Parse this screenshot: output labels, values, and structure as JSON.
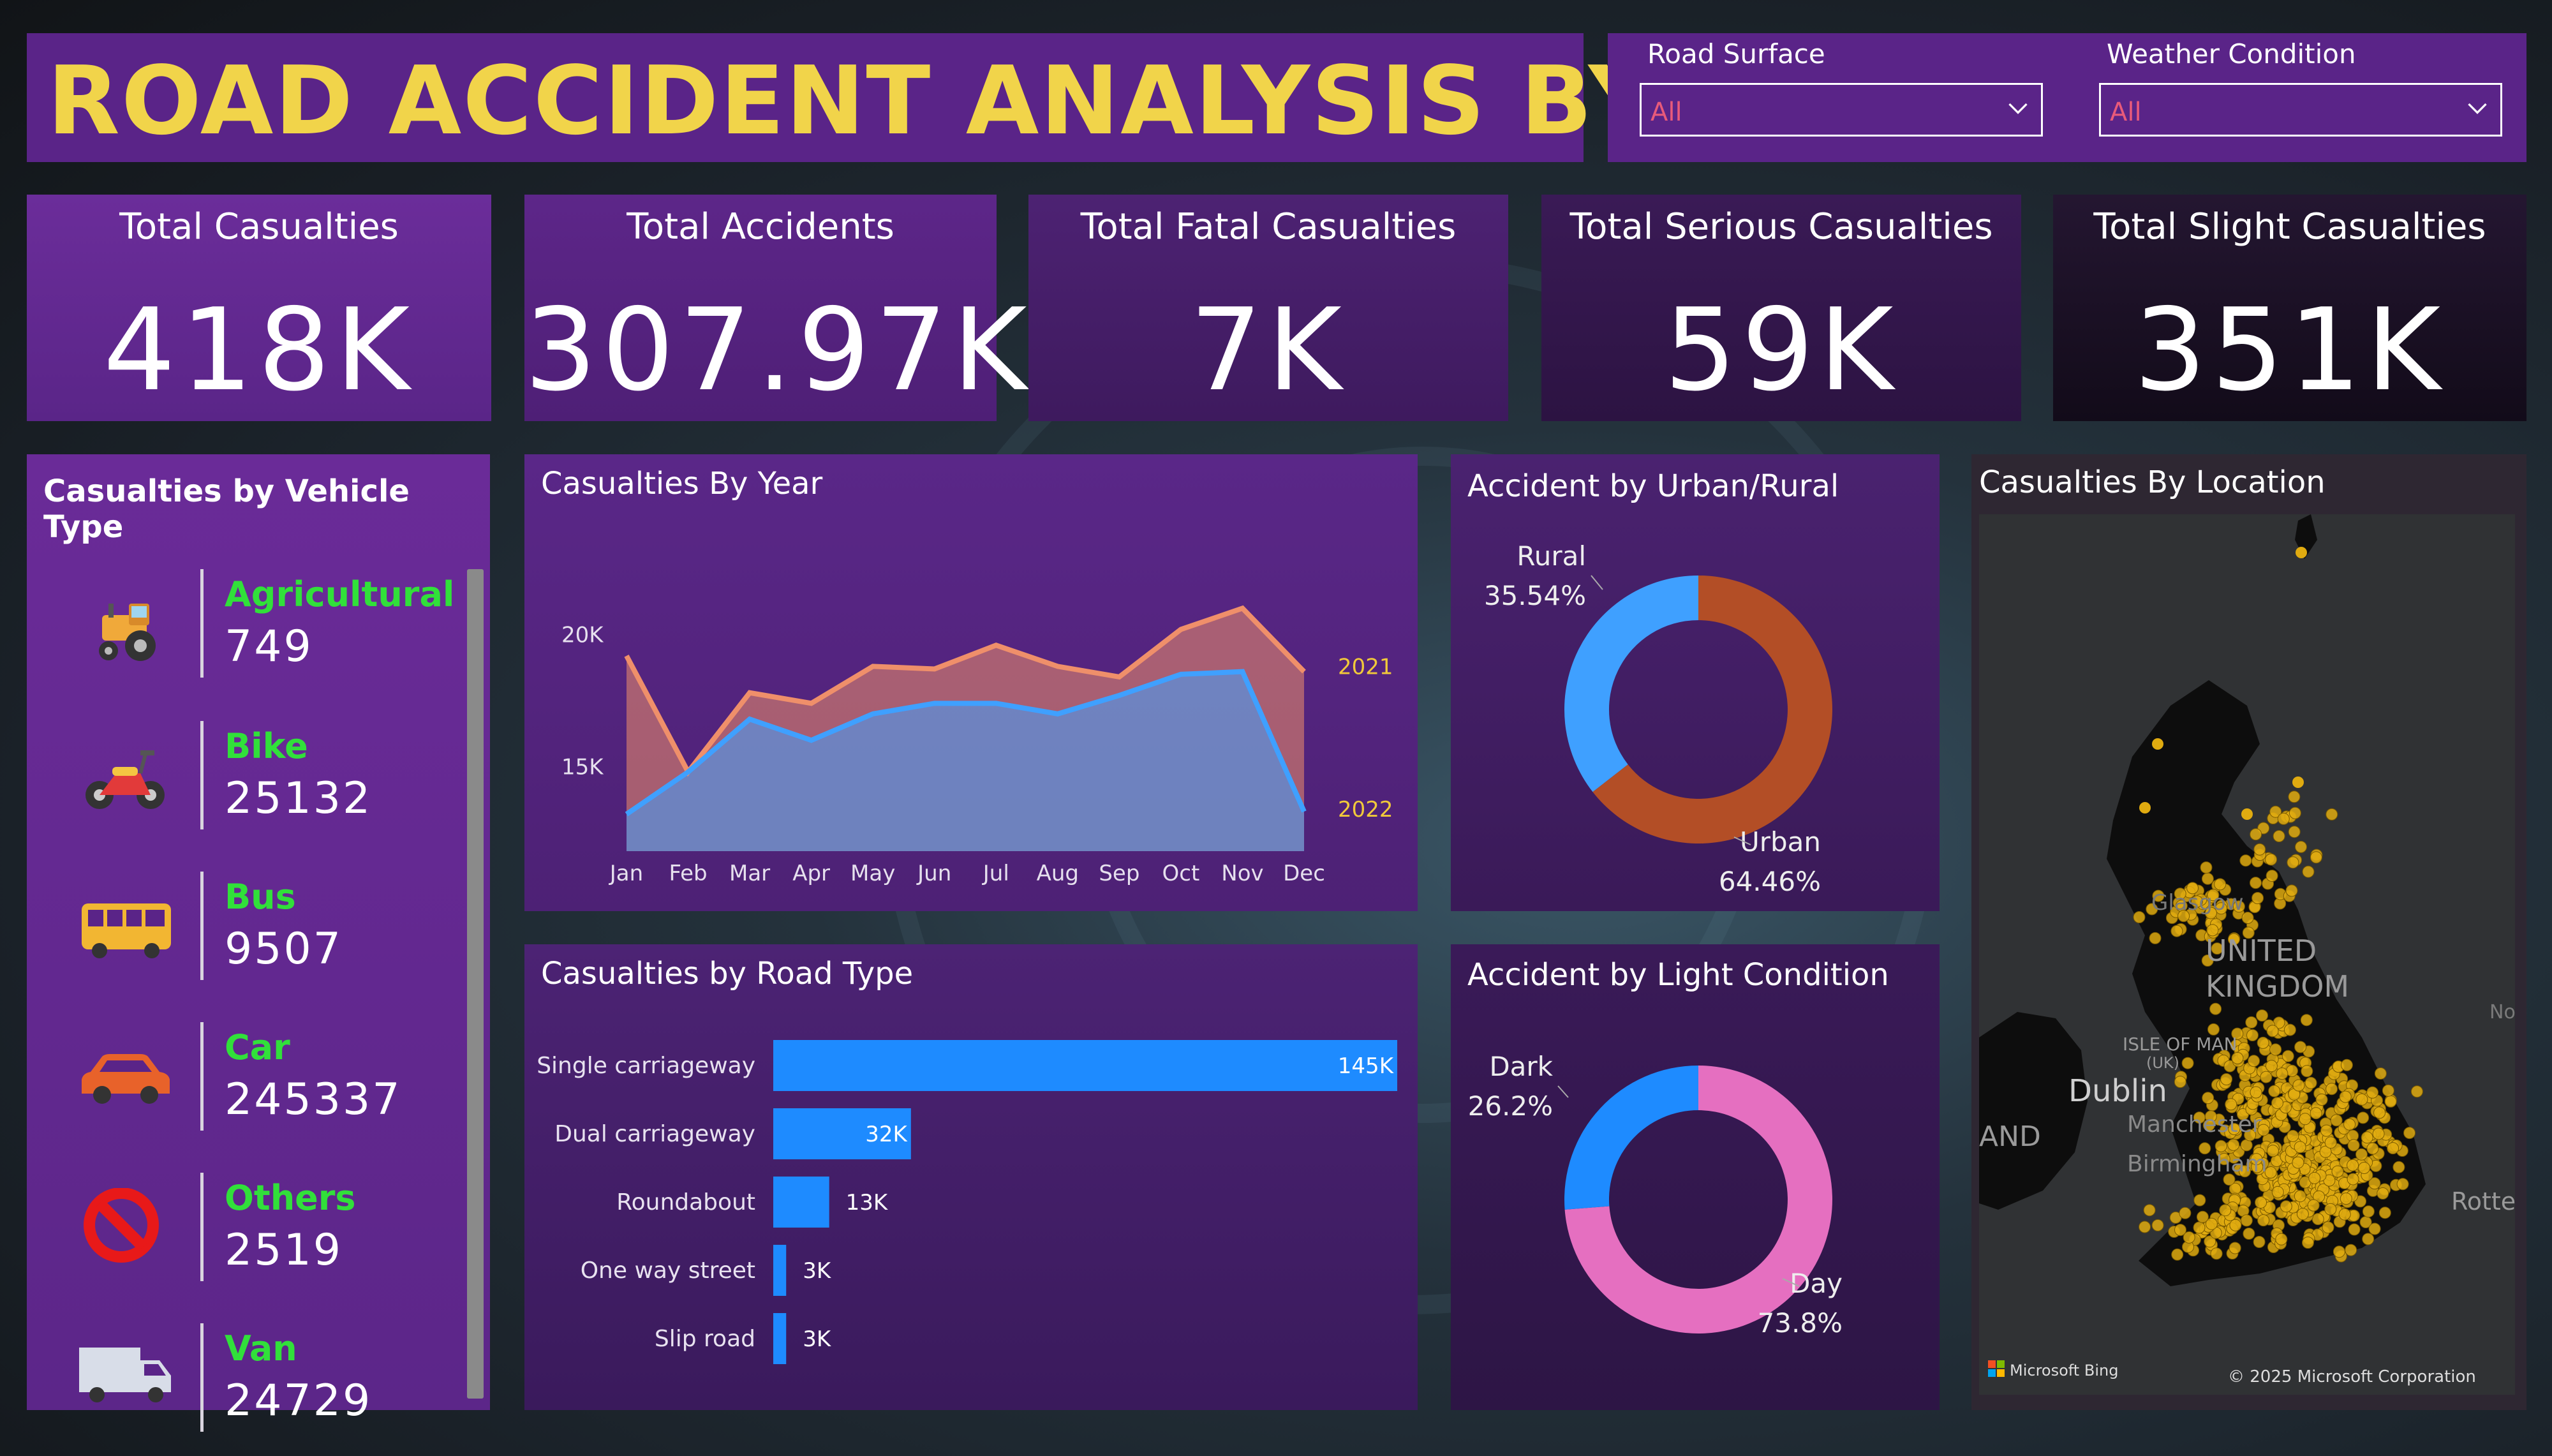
{
  "header": {
    "title": "ROAD ACCIDENT ANALYSIS BY SAPNA"
  },
  "filters": [
    {
      "label": "Road Surface",
      "value": "All"
    },
    {
      "label": "Weather Condition",
      "value": "All"
    }
  ],
  "kpis": [
    {
      "label": "Total Casualties",
      "value": "418K"
    },
    {
      "label": "Total Accidents",
      "value": "307.97K"
    },
    {
      "label": "Total Fatal Casualties",
      "value": "7K"
    },
    {
      "label": "Total Serious Casualties",
      "value": "59K"
    },
    {
      "label": "Total Slight Casualties",
      "value": "351K"
    }
  ],
  "vehicle": {
    "title": "Casualties by Vehicle Type",
    "items": [
      {
        "name": "Agricultural",
        "value": "749",
        "icon": "tractor-icon"
      },
      {
        "name": "Bike",
        "value": "25132",
        "icon": "motorbike-icon"
      },
      {
        "name": "Bus",
        "value": "9507",
        "icon": "bus-icon"
      },
      {
        "name": "Car",
        "value": "245337",
        "icon": "car-icon"
      },
      {
        "name": "Others",
        "value": "2519",
        "icon": "prohibited-icon"
      },
      {
        "name": "Van",
        "value": "24729",
        "icon": "van-icon"
      }
    ]
  },
  "year_chart": {
    "title": "Casualties By Year",
    "chart_data": {
      "type": "area",
      "categories": [
        "Jan",
        "Feb",
        "Mar",
        "Apr",
        "May",
        "Jun",
        "Jul",
        "Aug",
        "Sep",
        "Oct",
        "Nov",
        "Dec"
      ],
      "series": [
        {
          "name": "2021",
          "color": "#ef8f6a",
          "values": [
            19200,
            14800,
            17800,
            17400,
            18800,
            18700,
            19600,
            18800,
            18400,
            20200,
            21000,
            18600
          ]
        },
        {
          "name": "2022",
          "color": "#3fa0ff",
          "values": [
            13200,
            14800,
            16800,
            16000,
            17000,
            17400,
            17400,
            17000,
            17700,
            18500,
            18600,
            13300
          ]
        }
      ],
      "ylim": [
        11800,
        22000
      ],
      "yticks": [
        {
          "v": 15000,
          "label": "15K"
        },
        {
          "v": 20000,
          "label": "20K"
        }
      ]
    }
  },
  "road_chart": {
    "title": "Casualties by Road Type",
    "chart_data": {
      "type": "bar",
      "orientation": "horizontal",
      "color": "#1e8bff",
      "categories": [
        "Single carriageway",
        "Dual carriageway",
        "Roundabout",
        "One way street",
        "Slip road"
      ],
      "values": [
        145,
        32,
        13,
        3,
        3
      ],
      "labels": [
        "145K",
        "32K",
        "13K",
        "3K",
        "3K"
      ],
      "xlim": [
        0,
        145
      ]
    }
  },
  "urban_chart": {
    "title": "Accident by Urban/Rural",
    "chart_data": {
      "type": "pie",
      "slices": [
        {
          "name": "Urban",
          "pct": 64.46,
          "label": "64.46%",
          "color": "#b34e26"
        },
        {
          "name": "Rural",
          "pct": 35.54,
          "label": "35.54%",
          "color": "#3fa0ff"
        }
      ]
    }
  },
  "light_chart": {
    "title": "Accident by Light Condition",
    "chart_data": {
      "type": "pie",
      "slices": [
        {
          "name": "Day",
          "pct": 73.8,
          "label": "73.8%",
          "color": "#e56fc0"
        },
        {
          "name": "Dark",
          "pct": 26.2,
          "label": "26.2%",
          "color": "#1e8bff"
        }
      ]
    }
  },
  "location": {
    "title": "Casualties By Location",
    "map_labels": {
      "glasgow": "Glasgow",
      "uk1": "UNITED",
      "uk2": "KINGDOM",
      "isle": "ISLE OF MAN",
      "isle2": "(UK)",
      "dublin": "Dublin",
      "manchester": "Manchester",
      "birmingham": "Birmingham",
      "ireland": "AND",
      "rotter": "Rotter",
      "no": "No"
    },
    "attribution": "Microsoft Bing",
    "copyright": "© 2025 Microsoft Corporation"
  }
}
